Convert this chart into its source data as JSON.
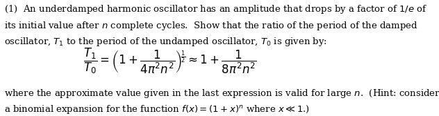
{
  "background_color": "#ffffff",
  "text_color": "#000000",
  "figsize": [
    6.32,
    1.68
  ],
  "dpi": 100,
  "line1": "(1)  An underdamped harmonic oscillator has an amplitude that drops by a factor of $1/e$ of",
  "line2": "its initial value after $n$ complete cycles.  Show that the ratio of the period of the damped",
  "line3": "oscillator, $T_1$ to the period of the undamped oscillator, $T_0$ is given by:",
  "line4": "where the approximate value given in the last expression is valid for large $n$.  (Hint: consider",
  "line5": "a binomial expansion for the function $f(x) = (1+x)^n$ where $x \\ll 1$.)"
}
